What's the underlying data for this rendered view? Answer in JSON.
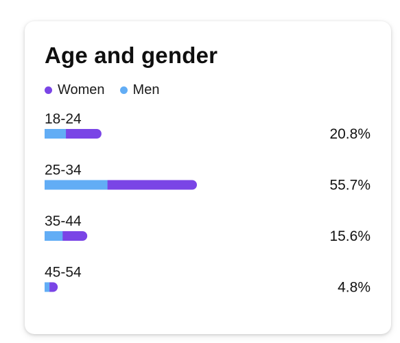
{
  "card": {
    "title": "Age and gender"
  },
  "legend": {
    "items": [
      {
        "label": "Women",
        "color": "#7a45e6"
      },
      {
        "label": "Men",
        "color": "#62adf5"
      }
    ]
  },
  "chart_data": {
    "type": "bar",
    "orientation": "horizontal",
    "stacked": true,
    "title": "Age and gender",
    "categories": [
      "18-24",
      "25-34",
      "35-44",
      "45-54"
    ],
    "series": [
      {
        "name": "Men",
        "color": "#62adf5",
        "values": [
          7.8,
          23.0,
          6.6,
          1.8
        ]
      },
      {
        "name": "Women",
        "color": "#7a45e6",
        "values": [
          13.0,
          32.7,
          9.0,
          3.0
        ]
      }
    ],
    "totals": [
      20.8,
      55.7,
      15.6,
      4.8
    ],
    "total_labels": [
      "20.8%",
      "55.7%",
      "15.6%",
      "4.8%"
    ],
    "xlim": [
      0,
      55.7
    ],
    "grid": false,
    "legend_position": "top-left"
  }
}
